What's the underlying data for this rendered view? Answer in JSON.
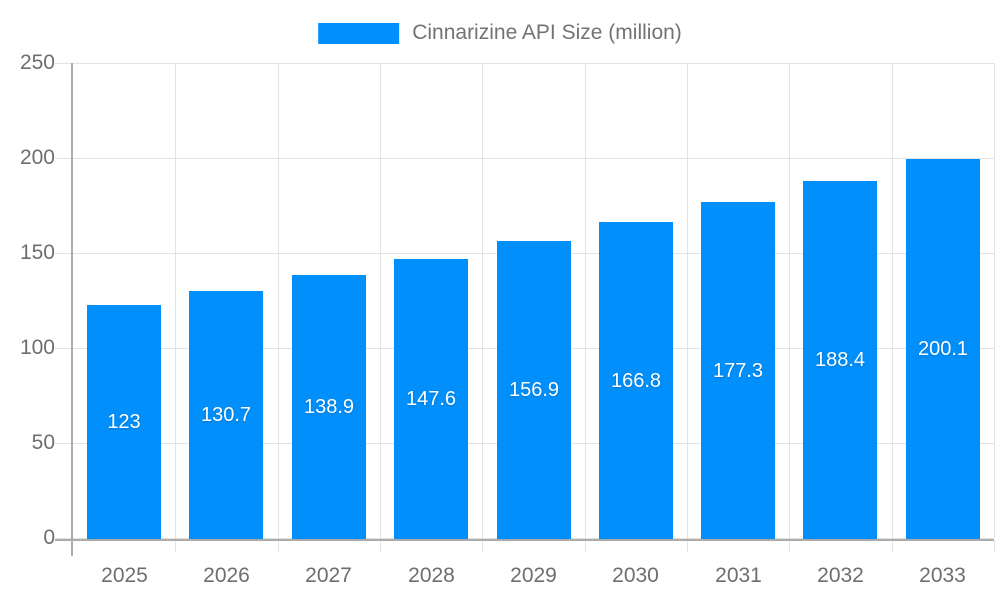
{
  "chart_data": {
    "type": "bar",
    "legend_label": "Cinnarizine API Size (million)",
    "categories": [
      "2025",
      "2026",
      "2027",
      "2028",
      "2029",
      "2030",
      "2031",
      "2032",
      "2033"
    ],
    "values": [
      123,
      130.7,
      138.9,
      147.6,
      156.9,
      166.8,
      177.3,
      188.4,
      200.1
    ],
    "value_labels": [
      "123",
      "130.7",
      "138.9",
      "147.6",
      "156.9",
      "166.8",
      "177.3",
      "188.4",
      "200.1"
    ],
    "xlabel": "",
    "ylabel": "",
    "ylim": [
      0,
      250
    ],
    "yticks": [
      0,
      50,
      100,
      150,
      200,
      250
    ],
    "grid": "on",
    "legend_position": "top-center",
    "data_label_position": "center-of-bar",
    "colors": {
      "bar": "#008FFB",
      "grid": "#e3e3e3",
      "axis": "#ababab",
      "axis_label_text": "#6e6e6e",
      "legend_text": "#737373",
      "data_label_text": "#ffffff",
      "background": "#ffffff"
    }
  }
}
